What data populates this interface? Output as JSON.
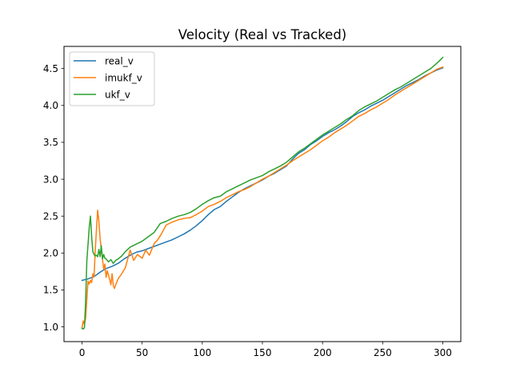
{
  "chart_data": {
    "type": "line",
    "title": "Velocity (Real vs Tracked)",
    "xlabel": "",
    "ylabel": "",
    "xlim": [
      -15,
      315
    ],
    "ylim": [
      0.8,
      4.8
    ],
    "xticks": [
      0,
      50,
      100,
      150,
      200,
      250,
      300
    ],
    "xtick_labels": [
      "0",
      "50",
      "100",
      "150",
      "200",
      "250",
      "300"
    ],
    "yticks": [
      1.0,
      1.5,
      2.0,
      2.5,
      3.0,
      3.5,
      4.0,
      4.5
    ],
    "ytick_labels": [
      "1.0",
      "1.5",
      "2.0",
      "2.5",
      "3.0",
      "3.5",
      "4.0",
      "4.5"
    ],
    "grid": false,
    "legend": "top-left",
    "series": [
      {
        "name": "real_v",
        "color": "#1f77b4",
        "x": [
          0,
          5,
          10,
          15,
          20,
          25,
          30,
          35,
          40,
          45,
          50,
          55,
          60,
          65,
          70,
          75,
          80,
          85,
          90,
          95,
          100,
          105,
          110,
          115,
          120,
          125,
          130,
          135,
          140,
          145,
          150,
          155,
          160,
          165,
          170,
          175,
          180,
          185,
          190,
          195,
          200,
          205,
          210,
          215,
          220,
          225,
          230,
          235,
          240,
          245,
          250,
          255,
          260,
          265,
          270,
          275,
          280,
          285,
          290,
          295,
          300
        ],
        "y": [
          1.63,
          1.65,
          1.68,
          1.74,
          1.79,
          1.82,
          1.86,
          1.92,
          1.97,
          2.01,
          2.03,
          2.06,
          2.09,
          2.12,
          2.15,
          2.18,
          2.22,
          2.26,
          2.31,
          2.37,
          2.44,
          2.52,
          2.59,
          2.63,
          2.7,
          2.76,
          2.82,
          2.87,
          2.91,
          2.95,
          2.99,
          3.04,
          3.08,
          3.13,
          3.18,
          3.27,
          3.35,
          3.4,
          3.47,
          3.52,
          3.58,
          3.63,
          3.67,
          3.72,
          3.78,
          3.85,
          3.9,
          3.94,
          3.99,
          4.03,
          4.07,
          4.12,
          4.17,
          4.22,
          4.27,
          4.31,
          4.35,
          4.4,
          4.44,
          4.48,
          4.51
        ]
      },
      {
        "name": "imukf_v",
        "color": "#ff7f0e",
        "x": [
          0,
          1,
          2,
          3,
          4,
          5,
          6,
          7,
          8,
          9,
          10,
          11,
          12,
          13,
          14,
          15,
          16,
          17,
          18,
          19,
          20,
          21,
          22,
          23,
          24,
          25,
          26,
          27,
          28,
          29,
          30,
          33,
          36,
          40,
          43,
          46,
          50,
          53,
          56,
          60,
          63,
          66,
          70,
          75,
          80,
          85,
          90,
          95,
          100,
          105,
          110,
          115,
          120,
          125,
          130,
          135,
          140,
          145,
          150,
          155,
          160,
          165,
          170,
          175,
          180,
          185,
          190,
          195,
          200,
          205,
          210,
          215,
          220,
          225,
          230,
          235,
          240,
          245,
          250,
          255,
          260,
          265,
          270,
          275,
          280,
          285,
          290,
          295,
          300
        ],
        "y": [
          0.99,
          1.08,
          1.03,
          1.12,
          1.38,
          1.62,
          1.58,
          1.63,
          1.6,
          1.72,
          1.68,
          2.04,
          2.32,
          2.58,
          2.43,
          2.2,
          2.05,
          1.92,
          1.78,
          1.85,
          1.67,
          1.76,
          1.7,
          1.64,
          1.57,
          1.72,
          1.56,
          1.52,
          1.57,
          1.61,
          1.65,
          1.72,
          1.8,
          2.04,
          1.9,
          1.98,
          1.93,
          2.04,
          1.97,
          2.13,
          2.18,
          2.26,
          2.38,
          2.42,
          2.45,
          2.47,
          2.48,
          2.52,
          2.57,
          2.63,
          2.66,
          2.7,
          2.75,
          2.79,
          2.83,
          2.86,
          2.9,
          2.95,
          3.0,
          3.04,
          3.09,
          3.14,
          3.19,
          3.25,
          3.3,
          3.35,
          3.4,
          3.46,
          3.52,
          3.57,
          3.63,
          3.68,
          3.73,
          3.79,
          3.85,
          3.89,
          3.94,
          3.98,
          4.03,
          4.08,
          4.14,
          4.19,
          4.24,
          4.29,
          4.34,
          4.39,
          4.44,
          4.49,
          4.52
        ]
      },
      {
        "name": "ukf_v",
        "color": "#2ca02c",
        "x": [
          0,
          1,
          2,
          3,
          4,
          5,
          6,
          7,
          8,
          9,
          10,
          11,
          12,
          13,
          14,
          15,
          16,
          17,
          18,
          19,
          20,
          22,
          24,
          26,
          28,
          30,
          33,
          36,
          40,
          45,
          50,
          55,
          60,
          65,
          70,
          75,
          80,
          85,
          90,
          95,
          100,
          105,
          110,
          115,
          120,
          125,
          130,
          135,
          140,
          145,
          150,
          155,
          160,
          165,
          170,
          175,
          180,
          185,
          190,
          195,
          200,
          205,
          210,
          215,
          220,
          225,
          230,
          235,
          240,
          245,
          250,
          255,
          260,
          265,
          270,
          275,
          280,
          285,
          290,
          295,
          300
        ],
        "y": [
          0.98,
          0.97,
          0.99,
          1.35,
          1.9,
          2.12,
          2.35,
          2.5,
          2.22,
          2.02,
          1.98,
          1.96,
          1.97,
          1.95,
          2.05,
          1.95,
          2.1,
          1.92,
          1.98,
          1.93,
          1.92,
          1.88,
          1.91,
          1.86,
          1.9,
          1.92,
          1.96,
          2.02,
          2.08,
          2.12,
          2.16,
          2.22,
          2.28,
          2.4,
          2.43,
          2.47,
          2.5,
          2.52,
          2.55,
          2.6,
          2.66,
          2.71,
          2.75,
          2.77,
          2.83,
          2.87,
          2.91,
          2.95,
          2.99,
          3.02,
          3.05,
          3.1,
          3.14,
          3.18,
          3.23,
          3.3,
          3.37,
          3.42,
          3.48,
          3.54,
          3.6,
          3.65,
          3.7,
          3.75,
          3.81,
          3.86,
          3.93,
          3.98,
          4.02,
          4.06,
          4.11,
          4.16,
          4.21,
          4.25,
          4.3,
          4.35,
          4.4,
          4.45,
          4.5,
          4.57,
          4.65
        ]
      }
    ]
  }
}
